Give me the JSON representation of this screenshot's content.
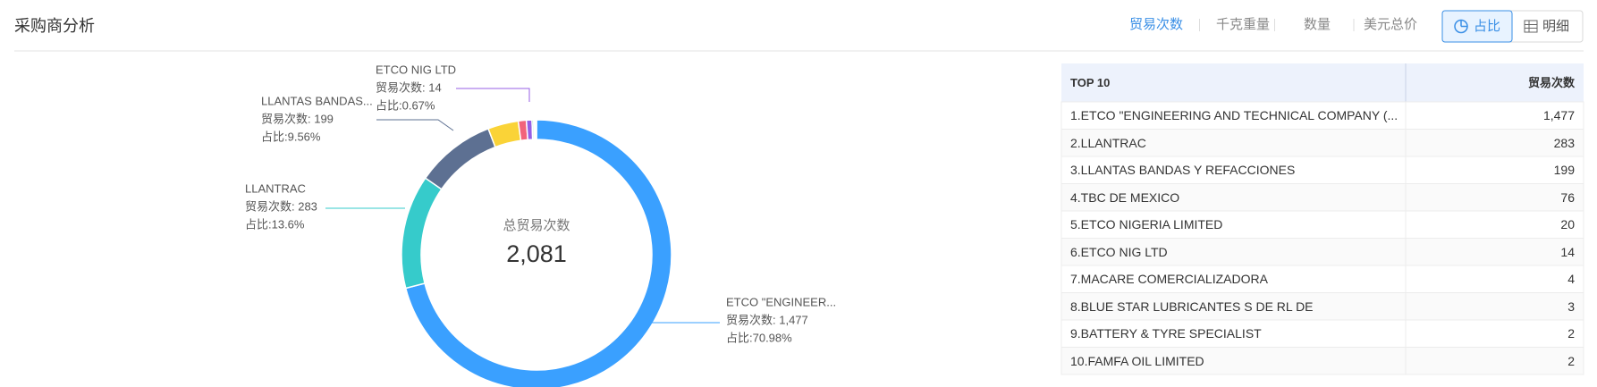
{
  "header": {
    "title": "采购商分析",
    "tabs": [
      "贸易次数",
      "千克重量",
      "数量",
      "美元总价"
    ],
    "toggle": [
      "占比",
      "明细"
    ]
  },
  "chart_data": {
    "type": "donut",
    "center_label": "总贸易次数",
    "center_value": "2,081",
    "values": [
      1477,
      283,
      199,
      76,
      20,
      14,
      4,
      3,
      2,
      2
    ],
    "colors": [
      "#3aa0ff",
      "#36cbcb",
      "#5d7092",
      "#fad337",
      "#f2637b",
      "#975fe4",
      "#4ecb73",
      "#435188",
      "#fbd437",
      "#e6965c"
    ],
    "callouts": [
      {
        "name": "ETCO NIG LTD",
        "metric": "贸易次数: 14",
        "share": "占比:0.67%"
      },
      {
        "name": "LLANTAS BANDAS...",
        "metric": "贸易次数: 199",
        "share": "占比:9.56%"
      },
      {
        "name": "LLANTRAC",
        "metric": "贸易次数: 283",
        "share": "占比:13.6%"
      },
      {
        "name": "ETCO \"ENGINEER...",
        "metric": "贸易次数: 1,477",
        "share": "占比:70.98%"
      }
    ]
  },
  "table": {
    "header": [
      "TOP 10",
      "贸易次数"
    ],
    "rows": [
      [
        "1.ETCO \"ENGINEERING AND TECHNICAL COMPANY (...",
        "1,477"
      ],
      [
        "2.LLANTRAC",
        "283"
      ],
      [
        "3.LLANTAS BANDAS Y REFACCIONES",
        "199"
      ],
      [
        "4.TBC DE MEXICO",
        "76"
      ],
      [
        "5.ETCO NIGERIA LIMITED",
        "20"
      ],
      [
        "6.ETCO NIG LTD",
        "14"
      ],
      [
        "7.MACARE COMERCIALIZADORA",
        "4"
      ],
      [
        "8.BLUE STAR LUBRICANTES S DE RL DE",
        "3"
      ],
      [
        "9.BATTERY & TYRE SPECIALIST",
        "2"
      ],
      [
        "10.FAMFA OIL LIMITED",
        "2"
      ]
    ]
  }
}
